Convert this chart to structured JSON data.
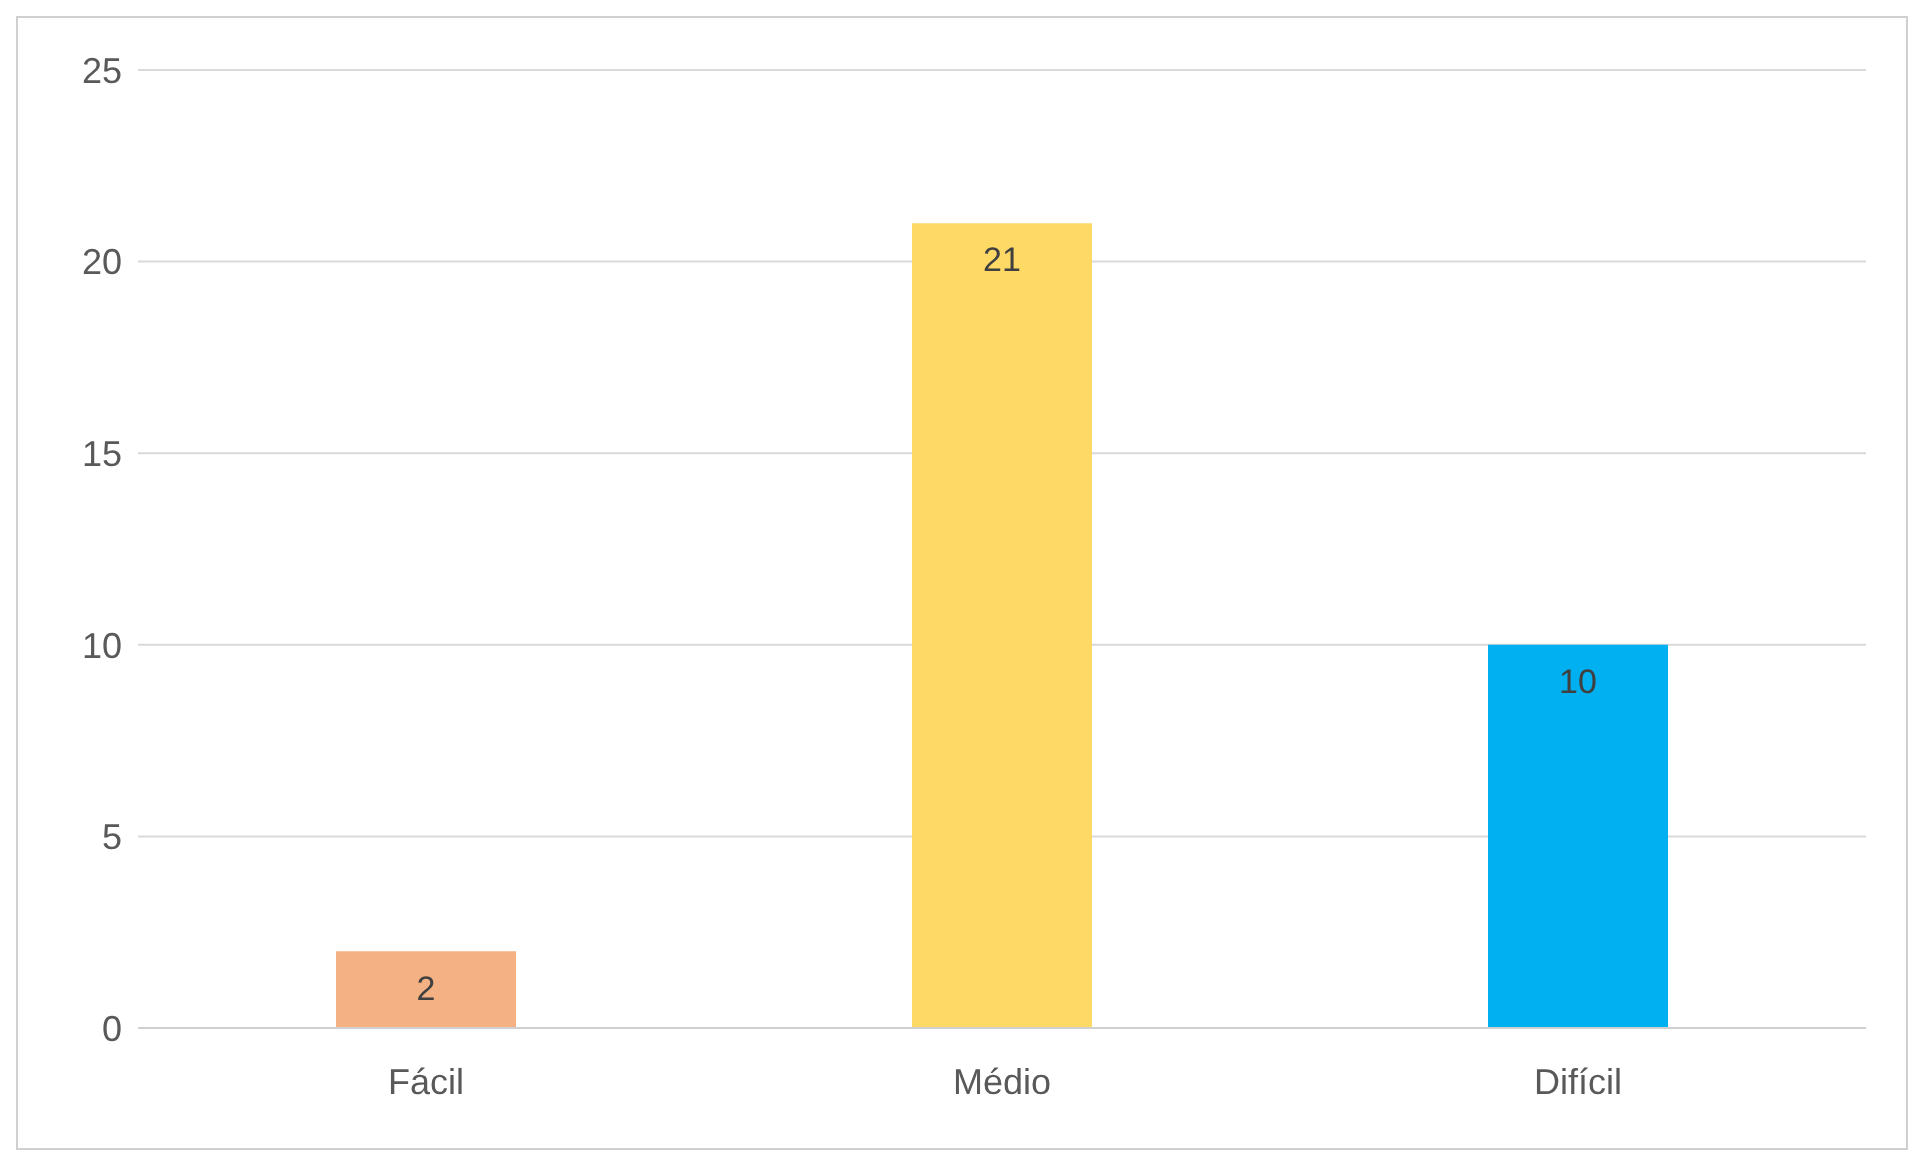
{
  "chart_data": {
    "type": "bar",
    "categories": [
      "Fácil",
      "Médio",
      "Difícil"
    ],
    "values": [
      2,
      21,
      10
    ],
    "colors": [
      "#f4b183",
      "#ffd966",
      "#00b0f0"
    ],
    "ylim": [
      0,
      25
    ],
    "yticks": [
      0,
      5,
      10,
      15,
      20,
      25
    ],
    "grid": "y",
    "data_labels": true,
    "legend": false
  }
}
